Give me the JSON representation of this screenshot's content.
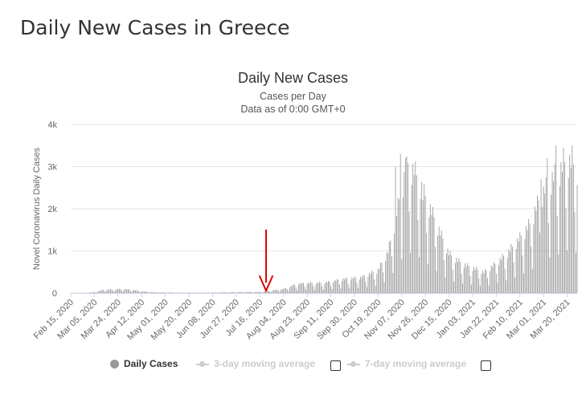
{
  "page": {
    "title": "Daily New Cases in Greece"
  },
  "chart_data": {
    "type": "bar",
    "title": "Daily New Cases",
    "subtitle": [
      "Cases per Day",
      "Data as of 0:00 GMT+0"
    ],
    "xlabel": "",
    "ylabel": "Novel Coronavirus Daily Cases",
    "ylim": [
      0,
      4000
    ],
    "y_ticks": [
      "0",
      "1k",
      "2k",
      "3k",
      "4k"
    ],
    "grid": true,
    "legend_position": "bottom",
    "x_start_date": "2020-02-15",
    "x_end_date": "2021-03-28",
    "x_tick_labels": [
      "Feb 15, 2020",
      "Mar 05, 2020",
      "Mar 24, 2020",
      "Apr 12, 2020",
      "May 01, 2020",
      "May 20, 2020",
      "Jun 08, 2020",
      "Jun 27, 2020",
      "Jul 16, 2020",
      "Aug 04, 2020",
      "Aug 23, 2020",
      "Sep 11, 2020",
      "Sep 30, 2020",
      "Oct 19, 2020",
      "Nov 07, 2020",
      "Nov 26, 2020",
      "Dec 15, 2020",
      "Jan 03, 2021",
      "Jan 22, 2021",
      "Feb 10, 2021",
      "Mar 01, 2021",
      "Mar 20, 2021"
    ],
    "series": [
      {
        "name": "Daily Cases",
        "color": "#999999",
        "keyframes": [
          [
            "2020-02-15",
            0
          ],
          [
            "2020-02-26",
            0
          ],
          [
            "2020-03-05",
            20
          ],
          [
            "2020-03-12",
            70
          ],
          [
            "2020-03-20",
            80
          ],
          [
            "2020-03-28",
            90
          ],
          [
            "2020-04-05",
            70
          ],
          [
            "2020-04-12",
            40
          ],
          [
            "2020-04-20",
            20
          ],
          [
            "2020-05-01",
            12
          ],
          [
            "2020-05-20",
            8
          ],
          [
            "2020-06-08",
            10
          ],
          [
            "2020-06-27",
            20
          ],
          [
            "2020-07-16",
            25
          ],
          [
            "2020-08-04",
            90
          ],
          [
            "2020-08-15",
            200
          ],
          [
            "2020-08-23",
            220
          ],
          [
            "2020-09-05",
            220
          ],
          [
            "2020-09-20",
            300
          ],
          [
            "2020-10-05",
            340
          ],
          [
            "2020-10-19",
            500
          ],
          [
            "2020-10-27",
            900
          ],
          [
            "2020-11-02",
            1600
          ],
          [
            "2020-11-07",
            2300
          ],
          [
            "2020-11-12",
            2800
          ],
          [
            "2020-11-18",
            2600
          ],
          [
            "2020-11-26",
            2100
          ],
          [
            "2020-12-05",
            1500
          ],
          [
            "2020-12-15",
            850
          ],
          [
            "2020-12-25",
            650
          ],
          [
            "2021-01-03",
            550
          ],
          [
            "2021-01-12",
            450
          ],
          [
            "2021-01-22",
            650
          ],
          [
            "2021-02-01",
            900
          ],
          [
            "2021-02-10",
            1200
          ],
          [
            "2021-02-18",
            1500
          ],
          [
            "2021-02-25",
            2000
          ],
          [
            "2021-03-01",
            2200
          ],
          [
            "2021-03-08",
            2500
          ],
          [
            "2021-03-15",
            2700
          ],
          [
            "2021-03-20",
            2900
          ],
          [
            "2021-03-28",
            2700
          ]
        ],
        "peaks": [
          [
            "2020-11-02",
            3000
          ],
          [
            "2020-11-06",
            3300
          ],
          [
            "2020-11-10",
            3200
          ],
          [
            "2020-11-17",
            2800
          ],
          [
            "2020-11-24",
            2200
          ],
          [
            "2021-02-27",
            2700
          ],
          [
            "2021-03-04",
            3200
          ],
          [
            "2021-03-11",
            3500
          ],
          [
            "2021-03-17",
            3450
          ],
          [
            "2021-03-24",
            3500
          ]
        ]
      },
      {
        "name": "3-day moving average",
        "visible": false
      },
      {
        "name": "7-day moving average",
        "visible": false
      }
    ]
  },
  "annotation": {
    "type": "red-arrow",
    "date": "2020-07-21",
    "color": "#e00000"
  }
}
